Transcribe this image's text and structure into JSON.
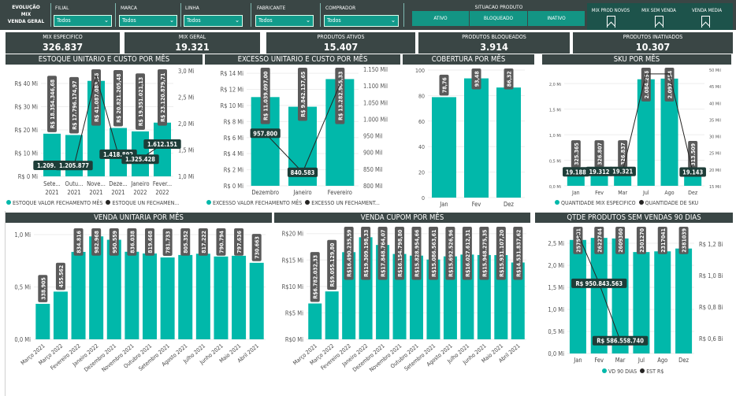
{
  "header": {
    "brand": [
      "EVOLUÇÃO",
      "MIX",
      "VENDA GERAL"
    ],
    "slicers": [
      {
        "label": "FILIAL",
        "value": "Todos"
      },
      {
        "label": "MARCA",
        "value": "Todos"
      },
      {
        "label": "LINHA",
        "value": "Todos"
      },
      {
        "label": "FABRICANTE",
        "value": "Todos"
      },
      {
        "label": "COMPRADOR",
        "value": "Todos"
      }
    ],
    "situacao": {
      "label": "SITUACAO PRODUTO",
      "buttons": [
        "ATIVO",
        "BLOQUEADO",
        "INATIVO"
      ]
    },
    "bookmarks": [
      "MIX PROD NOVOS",
      "MIX SEM VENDA",
      "VENDA MEDIA"
    ]
  },
  "kpis": [
    {
      "label": "MIX ESPECIFICO",
      "value": "326.837"
    },
    {
      "label": "MIX GERAL",
      "value": "19.321"
    },
    {
      "label": "PRODUTOS ATIVOS",
      "value": "15.407"
    },
    {
      "label": "PRODUTOS BLOQUEADOS",
      "value": "3.914"
    },
    {
      "label": "PRODUTOS INATIVADOS",
      "value": "10.307"
    }
  ],
  "colors": {
    "bar": "#01b8aa",
    "line": "#252423",
    "header": "#3a4645",
    "bar_label": "#5a5a5a",
    "line_label": "#1e3d38"
  },
  "chart_data": [
    {
      "id": "c1",
      "type": "bar+line",
      "title": "ESTOQUE UNITARIO E CUSTO POR MÊS",
      "categories": [
        "Sete... 2021",
        "Outu... 2021",
        "Nove... 2021",
        "Deze... 2021",
        "Janeiro 2022",
        "Fever... 2022"
      ],
      "ylim": [
        0,
        45.4
      ],
      "yticks": [
        {
          "v": 0,
          "label": "R$ 0 Mi"
        },
        {
          "v": 10,
          "label": "R$ 10 Mi"
        },
        {
          "v": 20,
          "label": "R$ 20 Mi"
        },
        {
          "v": 30,
          "label": "R$ 30 Mi"
        },
        {
          "v": 40,
          "label": "R$ 40 Mi"
        }
      ],
      "y2lim": [
        1,
        3
      ],
      "y2ticks": [
        {
          "v": 1,
          "label": "1,0 Mi"
        },
        {
          "v": 1.5,
          "label": "1,5 Mi"
        },
        {
          "v": 2,
          "label": "2,0 Mi"
        },
        {
          "v": 2.5,
          "label": "2,5 Mi"
        },
        {
          "v": 3,
          "label": "3,0 Mi"
        }
      ],
      "bars": {
        "name": "ESTOQUE VALOR FECHAMENTO MÊS",
        "values": [
          18.35,
          17.8,
          41.09,
          20.82,
          19.35,
          23.12
        ],
        "labels": [
          "R$ 18.354.346,68",
          "R$ 17.796.174,97",
          "R$ 41.087.083,36",
          "R$ 20.821.205,48",
          "R$ 19.351.021,13",
          "R$ 23.120.879,71"
        ]
      },
      "line": {
        "name": "ESTOQUE UN  FECHAMEN...",
        "values": [
          1.209875,
          1.205877,
          2.9,
          1.418892,
          1.325428,
          1.612151
        ],
        "labels": [
          "1.209.875",
          "1.205.877",
          null,
          "1.418.892",
          "1.325.428",
          "1.612.151"
        ]
      }
    },
    {
      "id": "c2",
      "type": "bar+line",
      "title": "EXCESSO UNITARIO E CUSTO POR MÊS",
      "categories": [
        "Dezembro",
        "Janeiro",
        "Fevereiro"
      ],
      "ylim": [
        0,
        14.5
      ],
      "yticks": [
        {
          "v": 0,
          "label": "R$ 0 Mi"
        },
        {
          "v": 2,
          "label": "R$ 2 Mi"
        },
        {
          "v": 4,
          "label": "R$ 4 Mi"
        },
        {
          "v": 6,
          "label": "R$ 6 Mi"
        },
        {
          "v": 8,
          "label": "R$ 8 Mi"
        },
        {
          "v": 10,
          "label": "R$ 10 Mi"
        },
        {
          "v": 12,
          "label": "R$ 12 Mi"
        },
        {
          "v": 14,
          "label": "R$ 14 Mi"
        }
      ],
      "y2lim": [
        800,
        1150
      ],
      "y2ticks": [
        {
          "v": 800,
          "label": "800 Mil"
        },
        {
          "v": 850,
          "label": "850 Mil"
        },
        {
          "v": 900,
          "label": "900 Mil"
        },
        {
          "v": 950,
          "label": "950 Mil"
        },
        {
          "v": 1000,
          "label": "1.000 Mil"
        },
        {
          "v": 1050,
          "label": "1.050 Mil"
        },
        {
          "v": 1100,
          "label": "1.100 Mil"
        },
        {
          "v": 1150,
          "label": "1.150 Mil"
        }
      ],
      "bars": {
        "name": "EXCESSO VALOR FECHAMENTO MÊS",
        "values": [
          11.04,
          9.84,
          13.28
        ],
        "labels": [
          "R$ 11.039.097,00",
          "R$ 9.842.137,65",
          "R$ 13.282.905,33"
        ]
      },
      "line": {
        "name": "EXCESSO UN FECHAMENT...",
        "values": [
          957.8,
          840.583,
          1105
        ],
        "labels": [
          "957.800",
          "840.583",
          null
        ]
      }
    },
    {
      "id": "c3",
      "type": "bar",
      "title": "COBERTURA POR MÊS",
      "categories": [
        "Jan",
        "Fev",
        "Dez"
      ],
      "ylim": [
        0,
        100
      ],
      "yticks": [
        {
          "v": 0,
          "label": "0"
        },
        {
          "v": 20,
          "label": "20"
        },
        {
          "v": 40,
          "label": "40"
        },
        {
          "v": 60,
          "label": "60"
        },
        {
          "v": 80,
          "label": "80"
        },
        {
          "v": 100,
          "label": "100"
        }
      ],
      "bars": {
        "values": [
          78.76,
          93.48,
          86.32
        ],
        "labels": [
          "78,76",
          "93,48",
          "86,32"
        ]
      }
    },
    {
      "id": "c4",
      "type": "bar+line",
      "title": "SKU POR MÊS",
      "categories": [
        "Jan",
        "Fev",
        "Mar",
        "Jul",
        "Ago",
        "Dez"
      ],
      "ylim": [
        0,
        2.28
      ],
      "yticks": [
        {
          "v": 0,
          "label": "0,0 Mi"
        },
        {
          "v": 0.5,
          "label": "0,5 Mi"
        },
        {
          "v": 1,
          "label": "1,0 Mi"
        },
        {
          "v": 1.5,
          "label": "1,5 Mi"
        },
        {
          "v": 2,
          "label": "2,0 Mi"
        }
      ],
      "y2lim": [
        15,
        50
      ],
      "y2ticks": [
        {
          "v": 15,
          "label": "15 Mil"
        },
        {
          "v": 20,
          "label": "20 Mil"
        },
        {
          "v": 25,
          "label": "25 Mil"
        },
        {
          "v": 30,
          "label": "30 Mil"
        },
        {
          "v": 35,
          "label": "35 Mil"
        },
        {
          "v": 40,
          "label": "40 Mil"
        },
        {
          "v": 45,
          "label": "45 Mil"
        },
        {
          "v": 50,
          "label": "50 Mil"
        }
      ],
      "bars": {
        "name": "QUANTIDADE MIX ESPECIFICO",
        "values": [
          0.325365,
          0.326807,
          0.326837,
          2.084296,
          2.097454,
          0.313509
        ],
        "labels": [
          "325.365",
          "326.807",
          "326.837",
          "2.084.296",
          "2.097.454",
          "313.509"
        ]
      },
      "line": {
        "name": "QUANTIDADE DE SKU",
        "values": [
          19.188,
          19.312,
          19.321,
          48.6,
          48.6,
          19.143
        ],
        "labels": [
          "19.188",
          "19.312",
          "19.321",
          null,
          null,
          "19.143"
        ]
      }
    },
    {
      "id": "c5",
      "type": "bar",
      "title": "VENDA UNITARIA POR MÊS",
      "categories": [
        "Março 2021",
        "Março 2022",
        "Fevereiro 2022",
        "Janeiro 2022",
        "Dezembro 2021",
        "Novembro 2021",
        "Outubro 2021",
        "Setembro 2021",
        "Agosto 2021",
        "Julho 2021",
        "Junho 2021",
        "Maio 2021",
        "Abril 2021"
      ],
      "ylim": [
        0,
        1.045
      ],
      "yticks": [
        {
          "v": 0,
          "label": "0,0 Mi"
        },
        {
          "v": 0.5,
          "label": "0,5 Mi"
        },
        {
          "v": 1,
          "label": "1,0 Mi"
        }
      ],
      "bars": {
        "values": [
          0.338905,
          0.455562,
          0.834816,
          0.982968,
          0.950559,
          0.836038,
          0.819668,
          0.781733,
          0.805352,
          0.817222,
          0.790794,
          0.797636,
          0.730663
        ],
        "labels": [
          "338.905",
          "455.562",
          "834.816",
          "982.968",
          "950.559",
          "836.038",
          "819.668",
          "781.733",
          "805.352",
          "817.222",
          "790.794",
          "797.636",
          "730.663"
        ]
      }
    },
    {
      "id": "c6",
      "type": "bar",
      "title": "VENDA CUPOM POR MÊS",
      "categories": [
        "Março 2021",
        "Março 2022",
        "Fevereiro 2022",
        "Janeiro 2022",
        "Dezembro 2021",
        "Novembro 2021",
        "Outubro 2021",
        "Setembro 2021",
        "Agosto 2021",
        "Julho 2021",
        "Junho 2021",
        "Maio 2021",
        "Abril 2021"
      ],
      "ylim": [
        0,
        21
      ],
      "yticks": [
        {
          "v": 0,
          "label": "R$0 Mi"
        },
        {
          "v": 5,
          "label": "R$5 Mi"
        },
        {
          "v": 10,
          "label": "R$10 Mi"
        },
        {
          "v": 15,
          "label": "R$15 Mi"
        },
        {
          "v": 20,
          "label": "R$20 Mi"
        }
      ],
      "bars": {
        "values": [
          6.78,
          9.06,
          16.49,
          19.31,
          17.85,
          16.15,
          15.83,
          15.09,
          15.69,
          16.03,
          15.95,
          15.93,
          14.53
        ],
        "labels": [
          "R$6.782.032,33",
          "R$9.055.129,80",
          "R$16.490.235,59",
          "R$19.309.198,33",
          "R$17.848.764,07",
          "R$16.154.798,80",
          "R$15.828.954,66",
          "R$15.086.563,61",
          "R$15.692.526,96",
          "R$16.027.612,31",
          "R$15.948.275,35",
          "R$15.931.107,20",
          "R$14.531.837,62"
        ]
      }
    },
    {
      "id": "c7",
      "type": "bar+line",
      "title": "QTDE PRODUTOS SEM VENDAS 90 DIAS",
      "categories": [
        "Jan",
        "Fev",
        "Mar",
        "Jul",
        "Ago",
        "Dez"
      ],
      "ylim": [
        0,
        2.84
      ],
      "yticks": [
        {
          "v": 0,
          "label": "0,0 Mi"
        },
        {
          "v": 0.5,
          "label": "0,5 Mi"
        },
        {
          "v": 1,
          "label": "1,0 Mi"
        },
        {
          "v": 1.5,
          "label": "1,5 Mi"
        },
        {
          "v": 2,
          "label": "2,0 Mi"
        },
        {
          "v": 2.5,
          "label": "2,5 Mi"
        }
      ],
      "y2lim": [
        0.505,
        1.3
      ],
      "y2ticks": [
        {
          "v": 0.6,
          "label": "R$ 0,6 Bi"
        },
        {
          "v": 0.8,
          "label": "R$ 0,8 Bi"
        },
        {
          "v": 1.0,
          "label": "R$ 1,0 Bi"
        },
        {
          "v": 1.2,
          "label": "R$ 1,2 Bi"
        }
      ],
      "bars": {
        "name": "VD 90 DIAS",
        "values": [
          2.575981,
          2.622744,
          2.60936,
          2.30127,
          2.317041,
          2.381039
        ],
        "labels": [
          "2575981",
          "2622744",
          "2609360",
          "2301270",
          "2317041",
          "2381039"
        ]
      },
      "line": {
        "name": "EST R$",
        "values": [
          1.265,
          0.950843563,
          0.58655874,
          null,
          null,
          null
        ],
        "labels": [
          null,
          "R$ 950.843.563",
          "R$ 586.558.740",
          null,
          null,
          null
        ]
      }
    }
  ]
}
